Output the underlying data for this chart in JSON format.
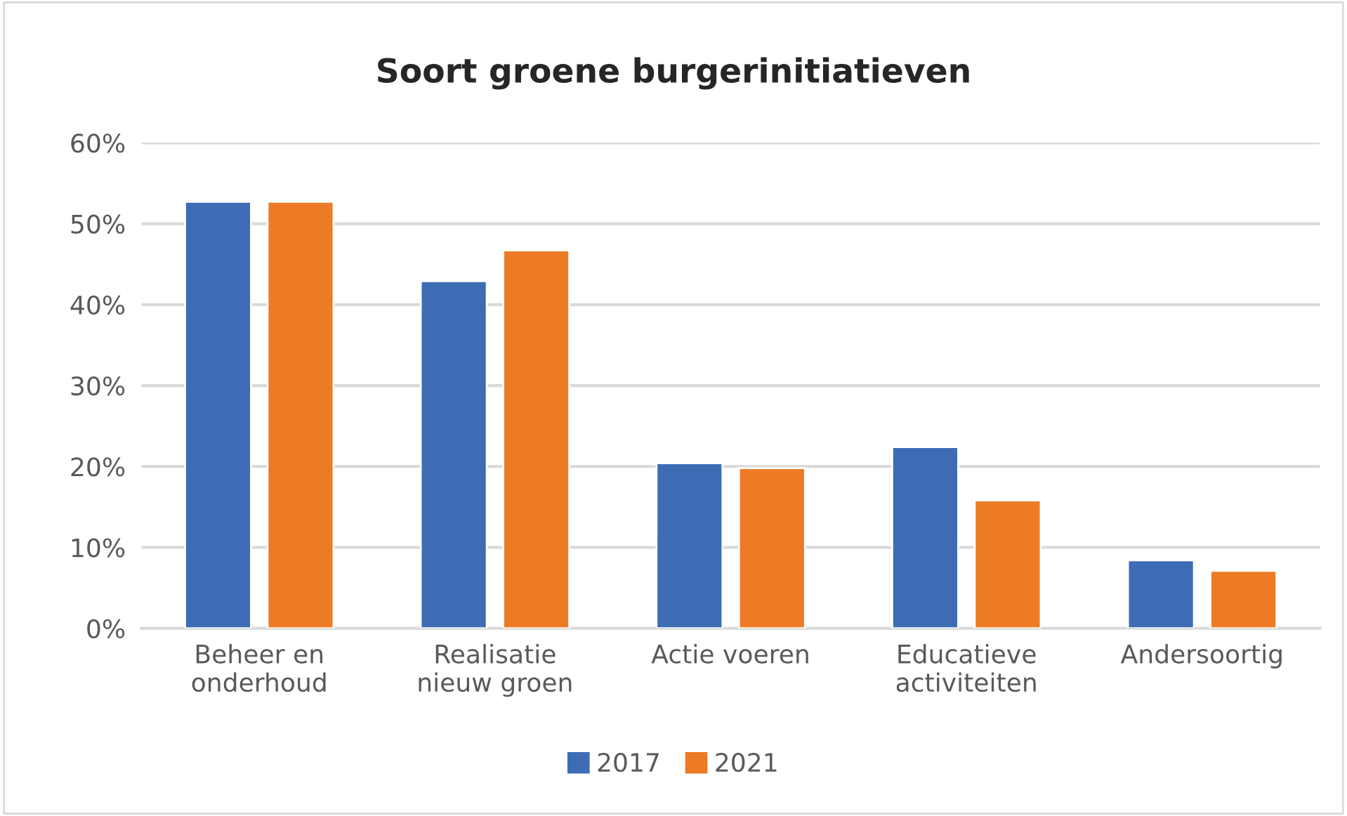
{
  "chart_data": {
    "type": "bar",
    "title": "Soort groene burgerinitiatieven",
    "categories": [
      "Beheer en\nonderhoud",
      "Realisatie\nnieuw groen",
      "Actie voeren",
      "Educatieve\nactiviteiten",
      "Andersoortig"
    ],
    "series": [
      {
        "name": "2017",
        "color": "#3d6cb5",
        "values": [
          52.7,
          42.9,
          20.4,
          22.4,
          8.4
        ]
      },
      {
        "name": "2021",
        "color": "#ed7a24",
        "values": [
          52.7,
          46.7,
          19.8,
          15.8,
          7.1
        ]
      }
    ],
    "ylim": [
      0,
      60
    ],
    "yticks": [
      {
        "value": 0,
        "label": "0%"
      },
      {
        "value": 10,
        "label": "10%"
      },
      {
        "value": 20,
        "label": "20%"
      },
      {
        "value": 30,
        "label": "30%"
      },
      {
        "value": 40,
        "label": "40%"
      },
      {
        "value": 50,
        "label": "50%"
      },
      {
        "value": 60,
        "label": "60%"
      }
    ],
    "grid": "y",
    "legend": "bottom"
  }
}
